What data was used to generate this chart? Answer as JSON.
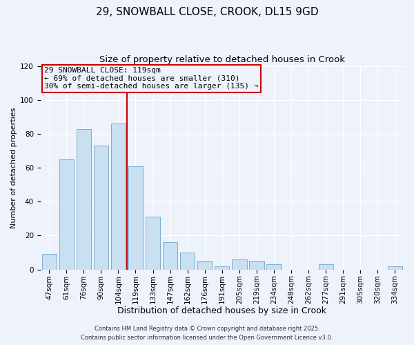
{
  "title": "29, SNOWBALL CLOSE, CROOK, DL15 9GD",
  "subtitle": "Size of property relative to detached houses in Crook",
  "xlabel": "Distribution of detached houses by size in Crook",
  "ylabel": "Number of detached properties",
  "categories": [
    "47sqm",
    "61sqm",
    "76sqm",
    "90sqm",
    "104sqm",
    "119sqm",
    "133sqm",
    "147sqm",
    "162sqm",
    "176sqm",
    "191sqm",
    "205sqm",
    "219sqm",
    "234sqm",
    "248sqm",
    "262sqm",
    "277sqm",
    "291sqm",
    "305sqm",
    "320sqm",
    "334sqm"
  ],
  "values": [
    9,
    65,
    83,
    73,
    86,
    61,
    31,
    16,
    10,
    5,
    2,
    6,
    5,
    3,
    0,
    0,
    3,
    0,
    0,
    0,
    2
  ],
  "bar_color": "#c9dff2",
  "bar_edge_color": "#7bafd4",
  "vline_color": "#cc0000",
  "annotation_title": "29 SNOWBALL CLOSE: 119sqm",
  "annotation_line1": "← 69% of detached houses are smaller (310)",
  "annotation_line2": "30% of semi-detached houses are larger (135) →",
  "box_color": "#cc0000",
  "ylim": [
    0,
    120
  ],
  "yticks": [
    0,
    20,
    40,
    60,
    80,
    100,
    120
  ],
  "background_color": "#eef2fb",
  "footer1": "Contains HM Land Registry data © Crown copyright and database right 2025.",
  "footer2": "Contains public sector information licensed under the Open Government Licence v3.0.",
  "title_fontsize": 11,
  "subtitle_fontsize": 9.5,
  "xlabel_fontsize": 9,
  "ylabel_fontsize": 8,
  "tick_fontsize": 7.5,
  "annotation_fontsize": 8,
  "footer_fontsize": 6
}
